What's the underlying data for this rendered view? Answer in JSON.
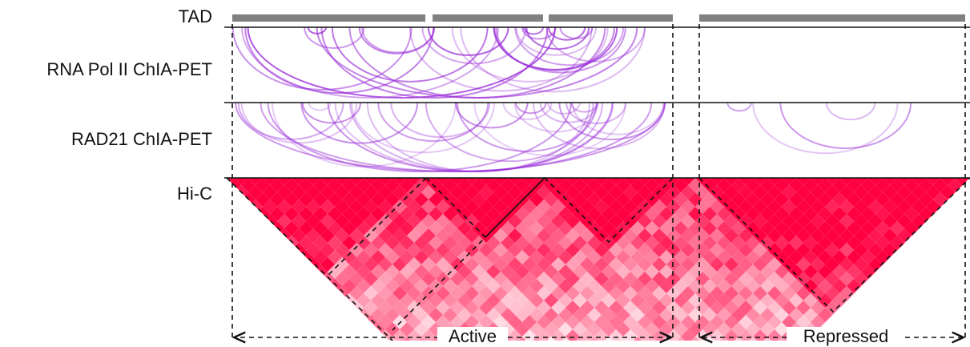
{
  "tracks": {
    "tad": "TAD",
    "pol2": "RNA Pol II ChIA-PET",
    "rad21": "RAD21 ChIA-PET",
    "hic": "Hi-C"
  },
  "domains": {
    "active": "Active",
    "repressed": "Repressed"
  }
}
